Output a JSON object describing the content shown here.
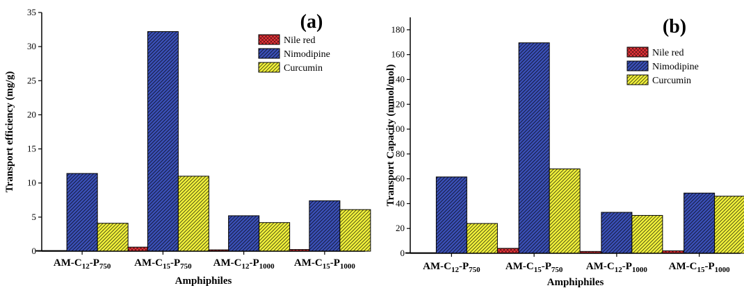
{
  "chart_data": [
    {
      "type": "bar",
      "panel_label": "(a)",
      "categories": [
        {
          "base": "AM-C",
          "sub1": "12",
          "mid": "-P",
          "sub2": "750"
        },
        {
          "base": "AM-C",
          "sub1": "15",
          "mid": "-P",
          "sub2": "750"
        },
        {
          "base": "AM-C",
          "sub1": "12",
          "mid": "-P",
          "sub2": "1000"
        },
        {
          "base": "AM-C",
          "sub1": "15",
          "mid": "-P",
          "sub2": "1000"
        }
      ],
      "series": [
        {
          "name": "Nile red",
          "color": "#e8343a",
          "pattern": "crosshatch",
          "values": [
            0.1,
            0.6,
            0.2,
            0.25
          ]
        },
        {
          "name": "Nimodipine",
          "color": "#3a4fb5",
          "pattern": "diagonal",
          "values": [
            11.4,
            32.2,
            5.2,
            7.4
          ]
        },
        {
          "name": "Curcumin",
          "color": "#f0f03a",
          "pattern": "diagonal",
          "values": [
            4.1,
            11.0,
            4.2,
            6.1
          ]
        }
      ],
      "xlabel": "Amphiphiles",
      "ylabel": "Transport efficiency (mg/g)",
      "ylim": [
        0,
        35
      ],
      "yticks": [
        0,
        5,
        10,
        15,
        20,
        25,
        30,
        35
      ],
      "grid": false,
      "legend_position": "top-right"
    },
    {
      "type": "bar",
      "panel_label": "(b)",
      "categories": [
        {
          "base": "AM-C",
          "sub1": "12",
          "mid": "-P",
          "sub2": "750"
        },
        {
          "base": "AM-C",
          "sub1": "15",
          "mid": "-P",
          "sub2": "750"
        },
        {
          "base": "AM-C",
          "sub1": "12",
          "mid": "-P",
          "sub2": "1000"
        },
        {
          "base": "AM-C",
          "sub1": "15",
          "mid": "-P",
          "sub2": "1000"
        }
      ],
      "series": [
        {
          "name": "Nile red",
          "color": "#e8343a",
          "pattern": "crosshatch",
          "values": [
            0.5,
            4.0,
            1.5,
            2.0
          ]
        },
        {
          "name": "Nimodipine",
          "color": "#3a4fb5",
          "pattern": "diagonal",
          "values": [
            61.5,
            169.5,
            33.0,
            48.5
          ]
        },
        {
          "name": "Curcumin",
          "color": "#f0f03a",
          "pattern": "diagonal",
          "values": [
            24.0,
            68.0,
            30.5,
            46.0
          ]
        }
      ],
      "xlabel": "Amphiphiles",
      "ylabel": "Transport Capacity (mmol/mol)",
      "ylim": [
        0,
        190
      ],
      "yticks": [
        0,
        20,
        40,
        60,
        80,
        100,
        120,
        140,
        160,
        180
      ],
      "grid": false,
      "legend_position": "top-right"
    }
  ]
}
